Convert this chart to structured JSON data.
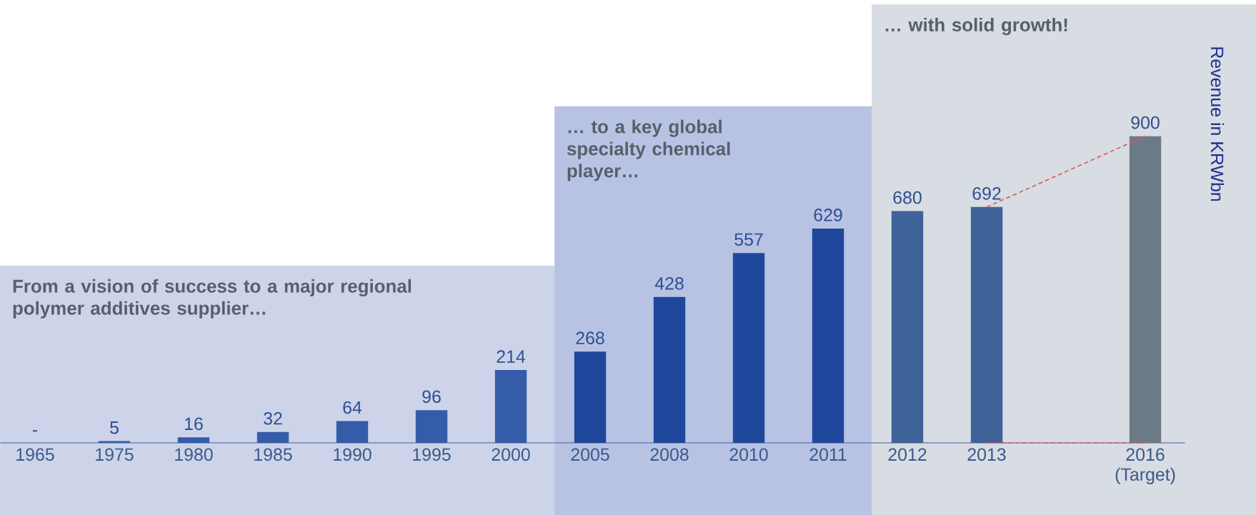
{
  "chart_data": {
    "type": "bar",
    "ylabel": "Revenue in KRWbn",
    "categories": [
      "1965",
      "1975",
      "1980",
      "1985",
      "1990",
      "1995",
      "2000",
      "2005",
      "2008",
      "2010",
      "2011",
      "2012",
      "2013",
      null,
      "2016 (Target)"
    ],
    "series": [
      {
        "values": [
          null,
          5,
          16,
          32,
          64,
          96,
          214,
          268,
          428,
          557,
          629,
          680,
          692,
          null,
          900
        ],
        "value_labels": [
          "-",
          "5",
          "16",
          "32",
          "64",
          "96",
          "214",
          "268",
          "428",
          "557",
          "629",
          "680",
          "692",
          null,
          "900"
        ],
        "colors": [
          "#345ca8",
          "#345ca8",
          "#345ca8",
          "#345ca8",
          "#345ca8",
          "#345ca8",
          "#345ca8",
          "#1f479b",
          "#1f479b",
          "#1f479b",
          "#1f479b",
          "#3e6398",
          "#3e6398",
          "#3e6398",
          "#6b7a85"
        ]
      },
      {
        "type": "line",
        "color": "#e05555",
        "line_style": "dashed",
        "values": [
          null,
          null,
          null,
          null,
          null,
          null,
          null,
          null,
          null,
          null,
          null,
          null,
          692,
          null,
          900
        ]
      },
      {
        "type": "line",
        "color": "#e05555",
        "line_style": "dashed",
        "values": [
          null,
          null,
          null,
          null,
          null,
          null,
          null,
          null,
          null,
          null,
          null,
          null,
          0,
          null,
          0
        ]
      }
    ],
    "bands": [
      {
        "axis": "x",
        "from": "1965",
        "to": "2000",
        "color": "#cdd4ea",
        "label": "From a vision of success to a major regional polymer additives supplier…"
      },
      {
        "axis": "x",
        "from": "2005",
        "to": "2011",
        "color": "#b8c3e4",
        "label": "… to a key global specialty chemical player…"
      },
      {
        "axis": "x",
        "from": "2012",
        "to": "2016 (Target)",
        "color": "#d8dce3",
        "label": "… with solid growth!"
      }
    ]
  }
}
